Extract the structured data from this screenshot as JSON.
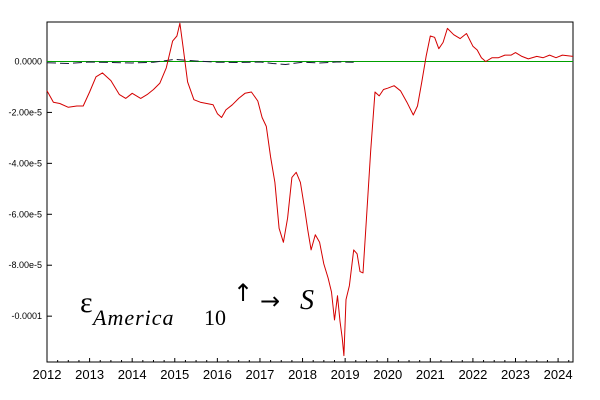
{
  "chart_data": {
    "type": "line",
    "title": "",
    "xlabel": "",
    "ylabel": "",
    "xlim": [
      2012.0,
      2024.35
    ],
    "ylim": [
      -0.000118,
      1.55e-05
    ],
    "x_ticks": [
      2012,
      2013,
      2014,
      2015,
      2016,
      2017,
      2018,
      2019,
      2020,
      2021,
      2022,
      2023,
      2024
    ],
    "x_tick_labels": [
      "2012",
      "2013",
      "2014",
      "2015",
      "2016",
      "2017",
      "2018",
      "2019",
      "2020",
      "2021",
      "2022",
      "2023",
      "2024"
    ],
    "y_ticks": [
      0,
      -2e-05,
      -4e-05,
      -6e-05,
      -8e-05,
      -0.0001
    ],
    "y_tick_labels": [
      "0.0000",
      "-2.00e-5",
      "-4.00e-5",
      "-6.00e-5",
      "-8.00e-5",
      "-0.0001"
    ],
    "grid": false,
    "annotation": {
      "epsilon": "ε",
      "subscript": "America",
      "number": "10",
      "up_arrow": "↑",
      "right_arrow": "→",
      "target": "S"
    },
    "series": [
      {
        "color": "#d40000",
        "style": "solid",
        "x": [
          2012.0,
          2012.15,
          2012.3,
          2012.5,
          2012.7,
          2012.85,
          2013.0,
          2013.15,
          2013.3,
          2013.5,
          2013.7,
          2013.85,
          2014.0,
          2014.2,
          2014.35,
          2014.5,
          2014.65,
          2014.8,
          2014.95,
          2015.05,
          2015.12,
          2015.2,
          2015.3,
          2015.45,
          2015.6,
          2015.75,
          2015.9,
          2016.0,
          2016.1,
          2016.2,
          2016.35,
          2016.5,
          2016.65,
          2016.8,
          2016.95,
          2017.05,
          2017.15,
          2017.25,
          2017.35,
          2017.45,
          2017.55,
          2017.65,
          2017.75,
          2017.85,
          2017.95,
          2018.05,
          2018.12,
          2018.2,
          2018.3,
          2018.4,
          2018.5,
          2018.6,
          2018.68,
          2018.75,
          2018.82,
          2018.88,
          2018.93,
          2018.97,
          2019.02,
          2019.1,
          2019.2,
          2019.28,
          2019.35,
          2019.42,
          2019.5,
          2019.6,
          2019.7,
          2019.8,
          2019.9,
          2020.0,
          2020.15,
          2020.3,
          2020.45,
          2020.6,
          2020.7,
          2020.8,
          2020.9,
          2021.0,
          2021.1,
          2021.2,
          2021.3,
          2021.4,
          2021.55,
          2021.7,
          2021.85,
          2022.0,
          2022.1,
          2022.2,
          2022.3,
          2022.45,
          2022.6,
          2022.75,
          2022.9,
          2023.0,
          2023.15,
          2023.3,
          2023.5,
          2023.65,
          2023.8,
          2023.95,
          2024.1,
          2024.35
        ],
        "y": [
          -1.15e-05,
          -1.6e-05,
          -1.65e-05,
          -1.8e-05,
          -1.75e-05,
          -1.75e-05,
          -1.2e-05,
          -6e-06,
          -4.5e-06,
          -7.5e-06,
          -1.3e-05,
          -1.45e-05,
          -1.25e-05,
          -1.45e-05,
          -1.3e-05,
          -1.1e-05,
          -8.5e-06,
          -2.5e-06,
          8e-06,
          1e-05,
          1.5e-05,
          5e-06,
          -8e-06,
          -1.5e-05,
          -1.6e-05,
          -1.65e-05,
          -1.7e-05,
          -2.05e-05,
          -2.2e-05,
          -1.9e-05,
          -1.7e-05,
          -1.45e-05,
          -1.25e-05,
          -1.2e-05,
          -1.55e-05,
          -2.2e-05,
          -2.55e-05,
          -3.75e-05,
          -4.75e-05,
          -6.55e-05,
          -7.1e-05,
          -6.15e-05,
          -4.55e-05,
          -4.35e-05,
          -4.75e-05,
          -5.8e-05,
          -6.6e-05,
          -7.4e-05,
          -6.8e-05,
          -7.1e-05,
          -7.95e-05,
          -8.5e-05,
          -9.05e-05,
          -0.0001015,
          -9.2e-05,
          -0.000102,
          -0.0001085,
          -0.0001155,
          -9.35e-05,
          -8.8e-05,
          -7.4e-05,
          -7.55e-05,
          -8.25e-05,
          -8.3e-05,
          -6.2e-05,
          -3.5e-05,
          -1.2e-05,
          -1.35e-05,
          -1.1e-05,
          -1.05e-05,
          -9.5e-06,
          -1.15e-05,
          -1.6e-05,
          -2.1e-05,
          -1.75e-05,
          -8e-06,
          2e-06,
          1e-05,
          9.5e-06,
          5e-06,
          7.5e-06,
          1.3e-05,
          1.05e-05,
          9e-06,
          1.1e-05,
          6e-06,
          4.5e-06,
          1.5e-06,
          0.0,
          1.5e-06,
          1.5e-06,
          2.5e-06,
          2.5e-06,
          3.5e-06,
          2e-06,
          1e-06,
          2e-06,
          1.5e-06,
          2.5e-06,
          1.5e-06,
          2.5e-06,
          2e-06
        ]
      },
      {
        "color": "#1a1a3a",
        "style": "dashed",
        "x": [
          2012.0,
          2012.5,
          2013.0,
          2013.5,
          2014.0,
          2014.5,
          2015.0,
          2015.5,
          2016.0,
          2016.5,
          2017.0,
          2017.3,
          2017.6,
          2018.0,
          2018.4,
          2018.8,
          2019.2
        ],
        "y": [
          -5e-07,
          -8e-07,
          -2e-07,
          -4e-07,
          -6e-07,
          -3e-07,
          8e-07,
          2e-07,
          -3e-07,
          -4e-07,
          -2e-07,
          -8e-07,
          -1.2e-06,
          -3e-07,
          -6e-07,
          -2e-07,
          -3e-07
        ]
      },
      {
        "color": "#00a000",
        "style": "solid",
        "x": [
          2012.0,
          2024.35
        ],
        "y": [
          0,
          0
        ]
      }
    ]
  }
}
